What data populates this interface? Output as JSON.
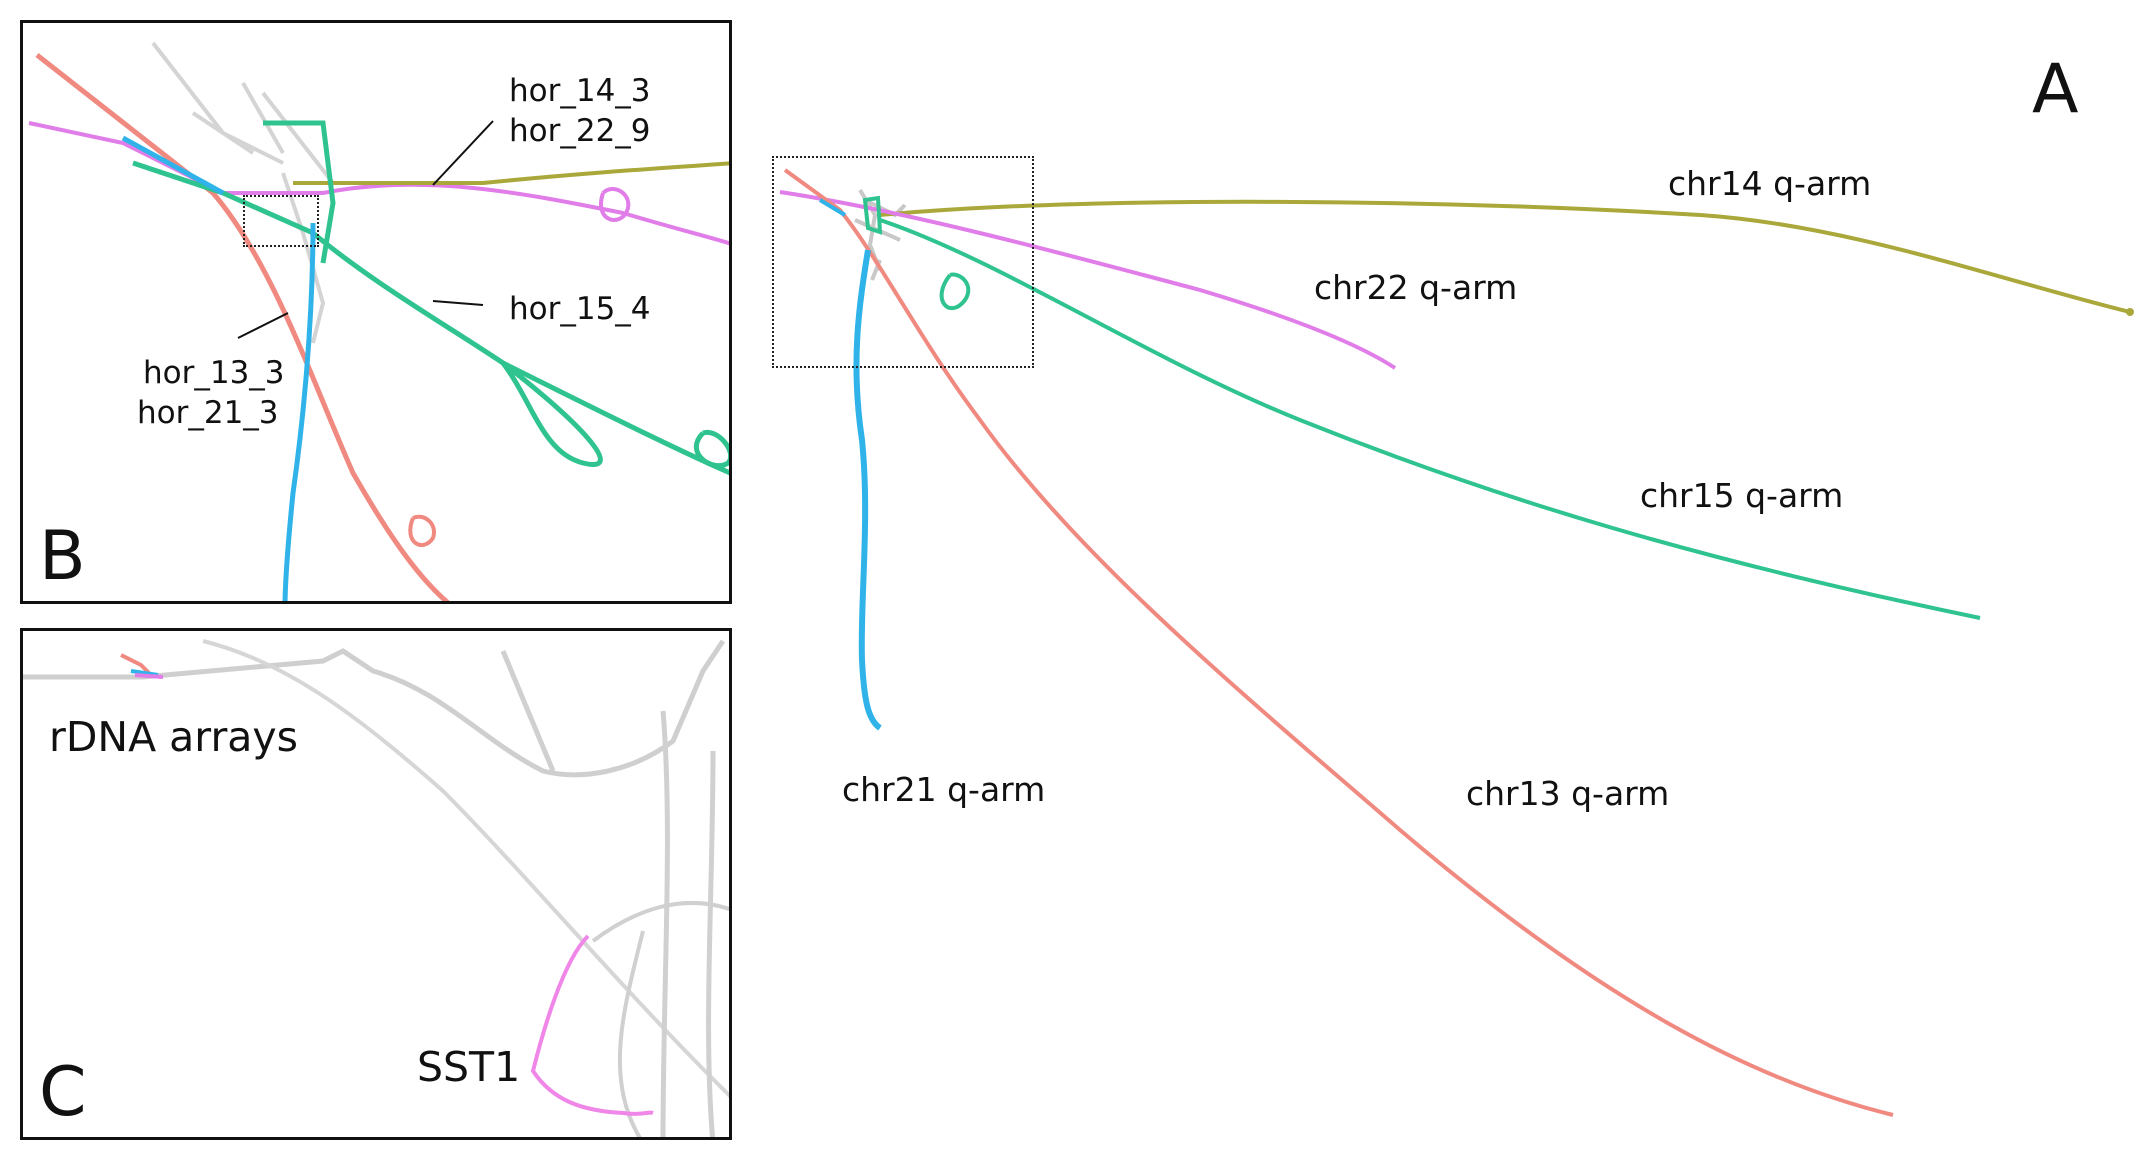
{
  "panels": {
    "a": {
      "letter": "A",
      "labels": {
        "chr14": "chr14 q-arm",
        "chr22": "chr22 q-arm",
        "chr15": "chr15 q-arm",
        "chr21": "chr21 q-arm",
        "chr13": "chr13 q-arm"
      }
    },
    "b": {
      "letter": "B",
      "labels": {
        "hor_14_3": "hor_14_3",
        "hor_22_9": "hor_22_9",
        "hor_15_4": "hor_15_4",
        "hor_13_3": "hor_13_3",
        "hor_21_3": "hor_21_3"
      }
    },
    "c": {
      "letter": "C",
      "labels": {
        "rdna": "rDNA arrays",
        "sst1": "SST1"
      }
    }
  },
  "colors": {
    "chr13": "#f08a80",
    "chr14": "#aaa83a",
    "chr15": "#2fc38f",
    "chr21": "#2fb3e8",
    "chr22": "#e07de8",
    "gray": "#c8c8c8"
  }
}
